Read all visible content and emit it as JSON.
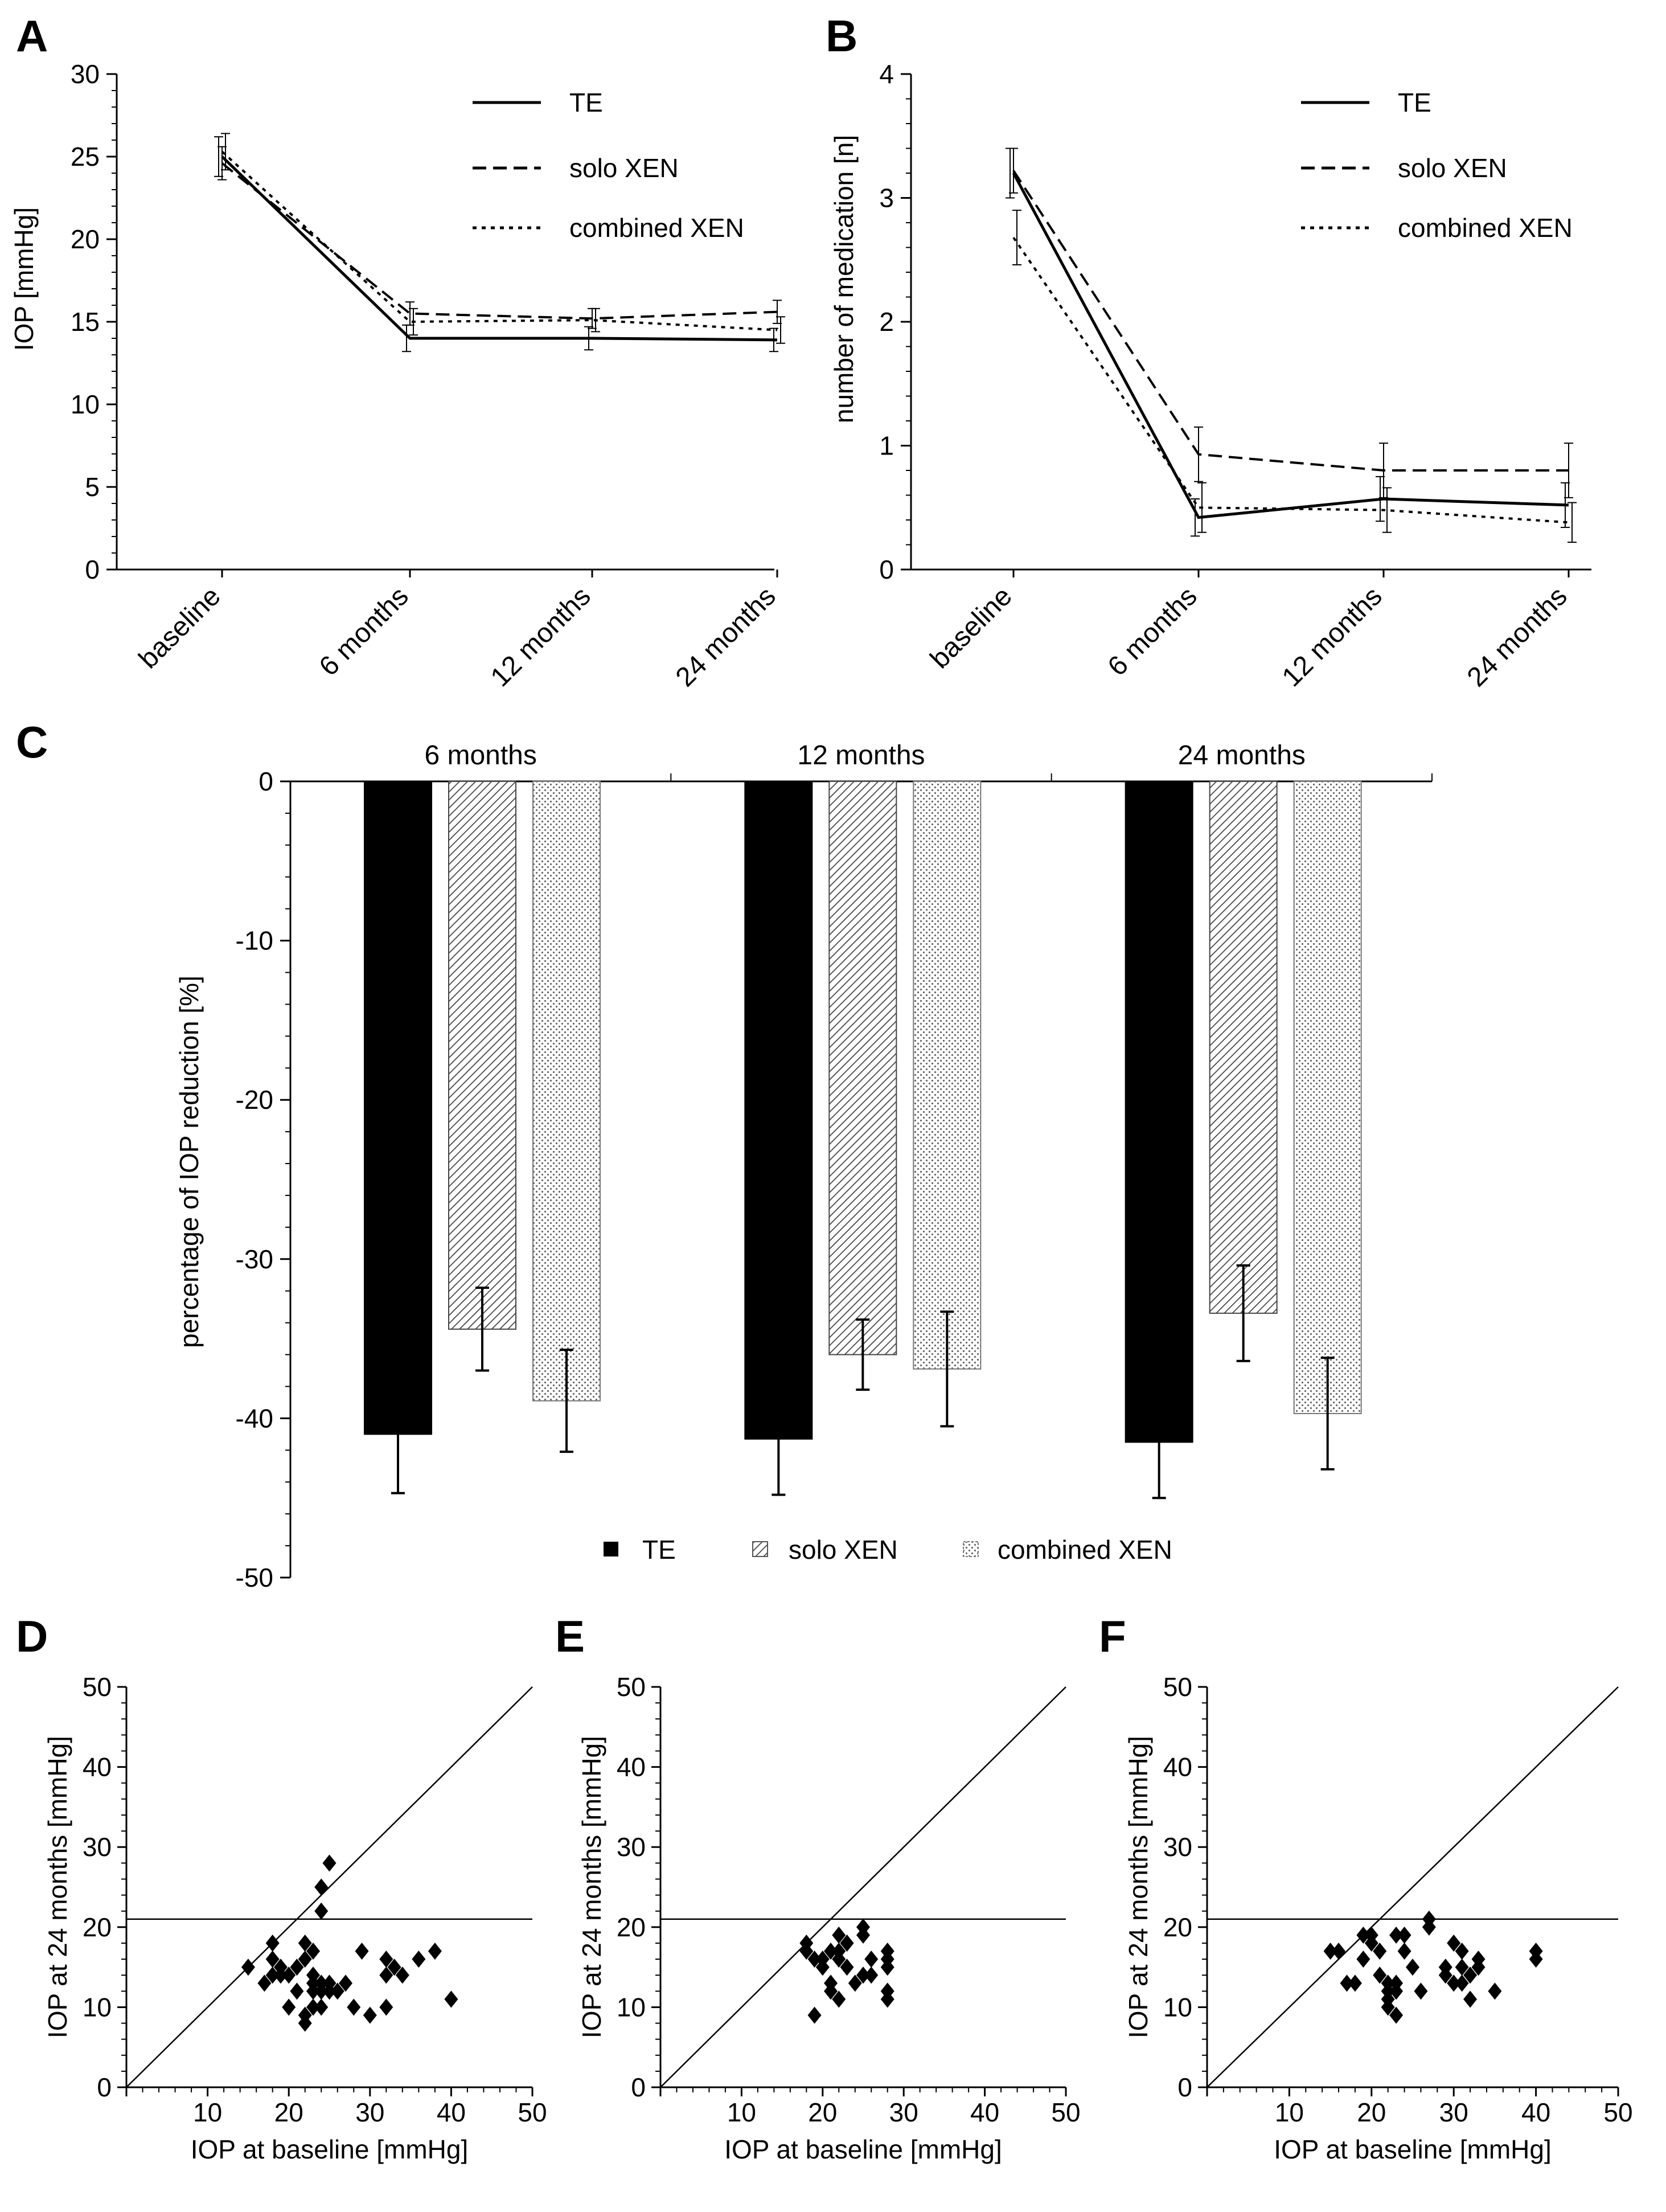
{
  "panel_labels": [
    "A",
    "B",
    "C",
    "D",
    "E",
    "F"
  ],
  "legend": {
    "te": "TE",
    "solo": "solo XEN",
    "combined": "combined XEN"
  },
  "chart_data": [
    {
      "panel": "A",
      "type": "line",
      "ylabel": "IOP [mmHg]",
      "ylim": [
        0,
        30
      ],
      "yticks": [
        "0",
        "5",
        "10",
        "15",
        "20",
        "25",
        "30"
      ],
      "categories": [
        "baseline",
        "6 months",
        "12 months",
        "24 months"
      ],
      "series": [
        {
          "name": "TE",
          "style": "solid",
          "values": [
            25.0,
            14.0,
            14.0,
            13.9
          ],
          "err": [
            1.2,
            0.8,
            0.7,
            0.7
          ]
        },
        {
          "name": "solo XEN",
          "style": "dashed",
          "values": [
            24.6,
            15.5,
            15.2,
            15.6
          ],
          "err": [
            1.0,
            0.7,
            0.6,
            0.7
          ]
        },
        {
          "name": "combined XEN",
          "style": "dotted",
          "values": [
            25.3,
            15.0,
            15.1,
            14.5
          ],
          "err": [
            1.1,
            0.8,
            0.7,
            0.8
          ]
        }
      ]
    },
    {
      "panel": "B",
      "type": "line",
      "ylabel": "number of medication [n]",
      "ylim": [
        0,
        4
      ],
      "yticks": [
        "0",
        "1",
        "2",
        "3",
        "4"
      ],
      "categories": [
        "baseline",
        "6 months",
        "12 months",
        "24 months"
      ],
      "series": [
        {
          "name": "TE",
          "style": "solid",
          "values": [
            3.2,
            0.42,
            0.57,
            0.52
          ],
          "err": [
            0.2,
            0.15,
            0.18,
            0.18
          ]
        },
        {
          "name": "solo XEN",
          "style": "dashed",
          "values": [
            3.22,
            0.93,
            0.8,
            0.8
          ],
          "err": [
            0.18,
            0.22,
            0.22,
            0.22
          ]
        },
        {
          "name": "combined XEN",
          "style": "dotted",
          "values": [
            2.68,
            0.5,
            0.48,
            0.38
          ],
          "err": [
            0.22,
            0.2,
            0.18,
            0.16
          ]
        }
      ]
    },
    {
      "panel": "C",
      "type": "bar",
      "ylabel": "percentage of IOP reduction [%]",
      "ylim": [
        -50,
        0
      ],
      "yticks": [
        "0",
        "-10",
        "-20",
        "-30",
        "-40",
        "-50"
      ],
      "categories": [
        "6 months",
        "12 months",
        "24 months"
      ],
      "series": [
        {
          "name": "TE",
          "values": [
            -41.0,
            -41.3,
            -41.5
          ],
          "err": [
            3.7,
            3.5,
            3.5
          ]
        },
        {
          "name": "solo XEN",
          "values": [
            -34.4,
            -36.0,
            -33.4
          ],
          "err": [
            2.6,
            2.2,
            3.0
          ]
        },
        {
          "name": "combined XEN",
          "values": [
            -38.9,
            -36.9,
            -39.7
          ],
          "err": [
            3.2,
            3.6,
            3.5
          ]
        }
      ]
    },
    {
      "panel": "D",
      "type": "scatter",
      "xlabel": "IOP at baseline [mmHg]",
      "ylabel": "IOP at 24 months [mmHg]",
      "xlim": [
        0,
        50
      ],
      "ylim": [
        0,
        50
      ],
      "xticks": [
        "10",
        "20",
        "30",
        "40",
        "50"
      ],
      "yticks": [
        "0",
        "10",
        "20",
        "30",
        "40",
        "50"
      ],
      "reference_lines": {
        "identity": true,
        "threshold_y": 21
      },
      "points": [
        [
          15,
          15
        ],
        [
          17,
          13
        ],
        [
          18,
          14
        ],
        [
          18,
          16
        ],
        [
          18,
          18
        ],
        [
          19,
          14
        ],
        [
          19,
          15
        ],
        [
          20,
          14
        ],
        [
          20,
          10
        ],
        [
          21,
          12
        ],
        [
          21,
          15
        ],
        [
          22,
          16
        ],
        [
          22,
          18
        ],
        [
          22,
          9
        ],
        [
          22,
          8
        ],
        [
          23,
          10
        ],
        [
          23,
          12
        ],
        [
          23,
          13
        ],
        [
          23,
          17
        ],
        [
          23,
          14
        ],
        [
          24,
          13
        ],
        [
          24,
          12
        ],
        [
          24,
          10
        ],
        [
          24,
          22
        ],
        [
          24,
          25
        ],
        [
          25,
          12
        ],
        [
          25,
          28
        ],
        [
          25,
          13
        ],
        [
          26,
          12
        ],
        [
          27,
          13
        ],
        [
          28,
          10
        ],
        [
          29,
          17
        ],
        [
          30,
          9
        ],
        [
          32,
          14
        ],
        [
          32,
          16
        ],
        [
          32,
          10
        ],
        [
          33,
          15
        ],
        [
          34,
          14
        ],
        [
          36,
          16
        ],
        [
          38,
          17
        ],
        [
          40,
          11
        ]
      ]
    },
    {
      "panel": "E",
      "type": "scatter",
      "xlabel": "IOP at baseline [mmHg]",
      "ylabel": "IOP at 24 months [mmHg]",
      "xlim": [
        0,
        50
      ],
      "ylim": [
        0,
        50
      ],
      "xticks": [
        "10",
        "20",
        "30",
        "40",
        "50"
      ],
      "yticks": [
        "0",
        "10",
        "20",
        "30",
        "40",
        "50"
      ],
      "reference_lines": {
        "identity": true,
        "threshold_y": 21
      },
      "points": [
        [
          18,
          17
        ],
        [
          18,
          18
        ],
        [
          19,
          16
        ],
        [
          19,
          9
        ],
        [
          20,
          16
        ],
        [
          20,
          15
        ],
        [
          21,
          17
        ],
        [
          21,
          13
        ],
        [
          21,
          12
        ],
        [
          22,
          19
        ],
        [
          22,
          17
        ],
        [
          22,
          16
        ],
        [
          22,
          11
        ],
        [
          23,
          18
        ],
        [
          23,
          15
        ],
        [
          23,
          18
        ],
        [
          24,
          13
        ],
        [
          25,
          19
        ],
        [
          25,
          20
        ],
        [
          25,
          14
        ],
        [
          26,
          16
        ],
        [
          26,
          14
        ],
        [
          28,
          17
        ],
        [
          28,
          15
        ],
        [
          28,
          16
        ],
        [
          28,
          12
        ],
        [
          28,
          11
        ]
      ]
    },
    {
      "panel": "F",
      "type": "scatter",
      "xlabel": "IOP at baseline [mmHg]",
      "ylabel": "IOP at 24 months [mmHg]",
      "xlim": [
        0,
        50
      ],
      "ylim": [
        0,
        50
      ],
      "xticks": [
        "10",
        "20",
        "30",
        "40",
        "50"
      ],
      "yticks": [
        "0",
        "10",
        "20",
        "30",
        "40",
        "50"
      ],
      "reference_lines": {
        "identity": true,
        "threshold_y": 21
      },
      "points": [
        [
          15,
          17
        ],
        [
          16,
          17
        ],
        [
          17,
          13
        ],
        [
          18,
          13
        ],
        [
          19,
          19
        ],
        [
          19,
          16
        ],
        [
          20,
          18
        ],
        [
          20,
          19
        ],
        [
          21,
          17
        ],
        [
          21,
          14
        ],
        [
          22,
          13
        ],
        [
          22,
          12
        ],
        [
          22,
          11
        ],
        [
          22,
          10
        ],
        [
          23,
          9
        ],
        [
          23,
          12
        ],
        [
          23,
          13
        ],
        [
          23,
          19
        ],
        [
          24,
          19
        ],
        [
          24,
          17
        ],
        [
          25,
          15
        ],
        [
          26,
          12
        ],
        [
          27,
          20
        ],
        [
          27,
          21
        ],
        [
          29,
          15
        ],
        [
          29,
          14
        ],
        [
          30,
          13
        ],
        [
          30,
          18
        ],
        [
          31,
          17
        ],
        [
          31,
          15
        ],
        [
          31,
          13
        ],
        [
          32,
          11
        ],
        [
          32,
          14
        ],
        [
          33,
          16
        ],
        [
          33,
          15
        ],
        [
          35,
          12
        ],
        [
          40,
          16
        ],
        [
          40,
          17
        ]
      ]
    }
  ]
}
